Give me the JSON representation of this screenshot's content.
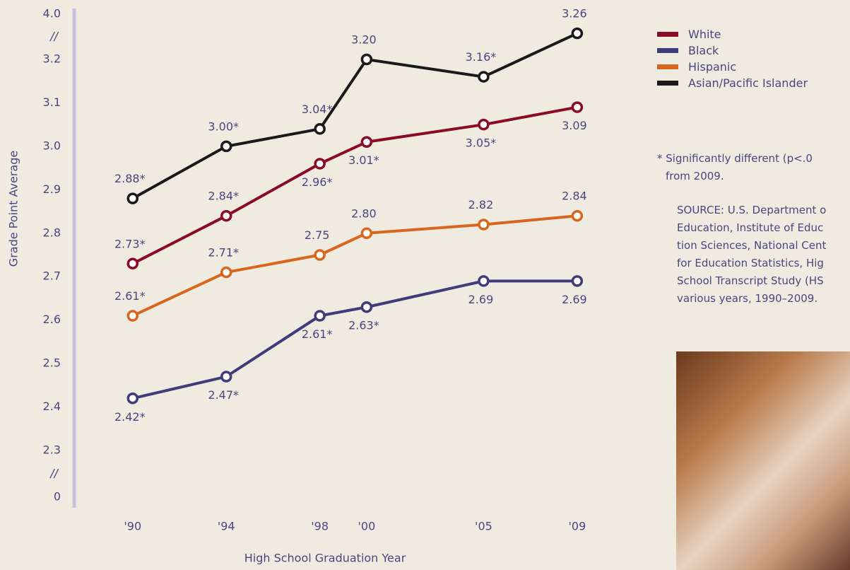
{
  "chart_data": {
    "type": "line",
    "x_label": "High School Graduation Year",
    "y_label": "Grade Point Average",
    "x": [
      1990,
      1994,
      1998,
      2000,
      2005,
      2009
    ],
    "xlim": [
      1987.5,
      2010
    ],
    "xticks": [
      {
        "value": 1990,
        "label": "'90"
      },
      {
        "value": 1994,
        "label": "'94"
      },
      {
        "value": 1998,
        "label": "'98"
      },
      {
        "value": 2000,
        "label": "'00"
      },
      {
        "value": 2005,
        "label": "'05"
      },
      {
        "value": 2009,
        "label": "'09"
      }
    ],
    "ylim": [
      0,
      4
    ],
    "yticks": [
      0,
      2.3,
      2.4,
      2.5,
      2.6,
      2.7,
      2.8,
      2.9,
      {
        "value": 3,
        "label": "3.0"
      },
      3.1,
      3.2,
      {
        "value": 4,
        "label": "4.0"
      }
    ],
    "y_break_label": "//",
    "series": [
      {
        "name": "White",
        "color": "#8b0a25",
        "values": [
          2.73,
          2.84,
          2.96,
          3.01,
          3.05,
          3.09
        ],
        "value_labels": [
          "2.73*",
          "2.84*",
          "2.96*",
          "3.01*",
          "3.05*",
          "3.09"
        ]
      },
      {
        "name": "Black",
        "color": "#403c7a",
        "values": [
          2.42,
          2.47,
          2.61,
          2.63,
          2.69,
          2.69
        ],
        "value_labels": [
          "2.42*",
          "2.47*",
          "2.61*",
          "2.63*",
          "2.69",
          "2.69"
        ]
      },
      {
        "name": "Hispanic",
        "color": "#d9661f",
        "values": [
          2.61,
          2.71,
          2.75,
          2.8,
          2.82,
          2.84
        ],
        "value_labels": [
          "2.61*",
          "2.71*",
          "2.75",
          "2.80",
          "2.82",
          "2.84"
        ]
      },
      {
        "name": "Asian/Pacific Islander",
        "color": "#1a1a1a",
        "values": [
          2.88,
          3.0,
          3.04,
          3.2,
          3.16,
          3.26
        ],
        "value_labels": [
          "2.88*",
          "3.00*",
          "3.04*",
          "3.20",
          "3.16*",
          "3.26"
        ]
      }
    ],
    "footnote": [
      "* Significantly different (p<.0",
      "from 2009."
    ],
    "source": [
      "SOURCE: U.S. Department o",
      "Education, Institute of Educ",
      "tion Sciences, National Cent",
      "for Education Statistics, Hig",
      "School Transcript Study (HS",
      "various years, 1990–2009."
    ]
  }
}
